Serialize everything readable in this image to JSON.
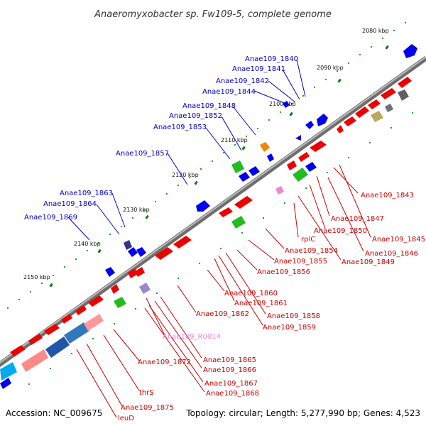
{
  "title": "Anaeromyxobacter sp. Fw109-5, complete genome",
  "footer": {
    "accession": "Accession: NC_009675",
    "topology": "Topology: circular; Length: 5,277,990 bp; Genes: 4,523"
  },
  "colors": {
    "backbone": "#808080",
    "reverse_strand": "#ee0000",
    "forward_strand": "#0000ee",
    "green_feature": "#22bb22",
    "orange_feature": "#ee8800",
    "pink_feature": "#ee88cc",
    "label_blue": "#0000cc",
    "label_red": "#cc0000"
  },
  "kbp_ticks": [
    "2080 kbp",
    "2090 kbp",
    "2100 kbp",
    "2110 kbp",
    "2120 kbp",
    "2130 kbp",
    "2140 kbp",
    "2150 kbp"
  ],
  "upper_labels": [
    "Anae109_1840",
    "Anae109_1841",
    "Anae109_1842",
    "Anae109_1844",
    "Anae109_1848",
    "Anae109_1852",
    "Anae109_1853",
    "Anae109_1857",
    "Anae109_1863",
    "Anae109_1864",
    "Anae109_1869"
  ],
  "lower_labels": [
    "Anae109_1843",
    "Anae109_1847",
    "Anae109_1850",
    "Anae109_1845",
    "rplC",
    "Anae109_1846",
    "Anae109_1854",
    "Anae109_1849",
    "Anae109_1855",
    "Anae109_1856",
    "Anae109_1860",
    "Anae109_1861",
    "Anae109_1858",
    "Anae109_1862",
    "Anae109_1859",
    "Anae109_R0014",
    "Anae109_1865",
    "Anae109_1872",
    "Anae109_1866",
    "Anae109_1867",
    "thrS",
    "Anae109_1868",
    "Anae109_1875",
    "leuD"
  ]
}
